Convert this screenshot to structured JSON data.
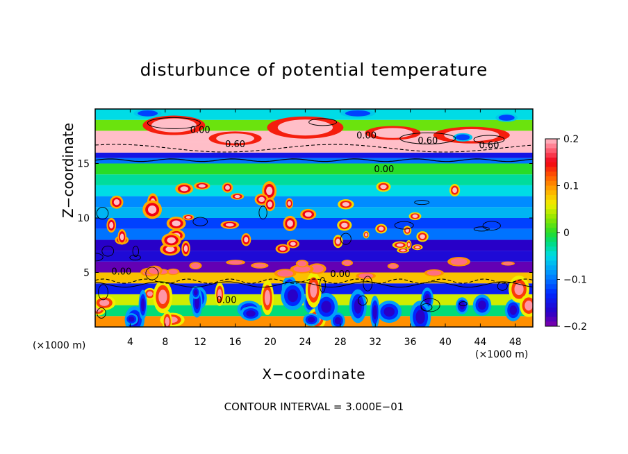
{
  "chart_data": {
    "type": "heatmap",
    "title": "disturbunce of potential temperature",
    "xlabel": "X−coordinate",
    "ylabel": "Z−coordinate",
    "x_unit_left": "(×1000 m)",
    "x_unit_right": "(×1000 m)",
    "footer": "CONTOUR INTERVAL = 3.000E−01",
    "xlim": [
      0,
      50
    ],
    "ylim": [
      0,
      20
    ],
    "x_ticks": [
      "4",
      "8",
      "12",
      "16",
      "20",
      "24",
      "28",
      "32",
      "36",
      "40",
      "44",
      "48"
    ],
    "x_tick_values": [
      4,
      8,
      12,
      16,
      20,
      24,
      28,
      32,
      36,
      40,
      44,
      48
    ],
    "y_ticks": [
      "5",
      "10",
      "15"
    ],
    "y_tick_values": [
      5,
      10,
      15
    ],
    "colorbar": {
      "min": -0.2,
      "max": 0.2,
      "labels": [
        "0.2",
        "0.1",
        "0",
        "−0.1",
        "−0.2"
      ],
      "label_values": [
        0.2,
        0.1,
        0,
        -0.1,
        -0.2
      ]
    },
    "contour_labels": [
      "0.00",
      "0.60",
      "0.00",
      "0.60",
      "0.60",
      "0.00",
      "0.00",
      "0.00",
      "0.00"
    ],
    "contour_interval": 0.3,
    "bands": [
      {
        "z": [
          0,
          1
        ],
        "value": 0.1
      },
      {
        "z": [
          1,
          2
        ],
        "value": -0.02
      },
      {
        "z": [
          2,
          3
        ],
        "value": 0.05
      },
      {
        "z": [
          3,
          4
        ],
        "value": -0.14
      },
      {
        "z": [
          4,
          5
        ],
        "value": 0.08
      },
      {
        "z": [
          5,
          6
        ],
        "value": -0.19
      },
      {
        "z": [
          6,
          7
        ],
        "value": -0.16
      },
      {
        "z": [
          7,
          8
        ],
        "value": -0.17
      },
      {
        "z": [
          8,
          9
        ],
        "value": -0.1
      },
      {
        "z": [
          9,
          10
        ],
        "value": -0.12
      },
      {
        "z": [
          10,
          11
        ],
        "value": -0.07
      },
      {
        "z": [
          11,
          12
        ],
        "value": -0.09
      },
      {
        "z": [
          12,
          13
        ],
        "value": -0.05
      },
      {
        "z": [
          13,
          14
        ],
        "value": -0.03
      },
      {
        "z": [
          14,
          15
        ],
        "value": 0.0
      },
      {
        "z": [
          15,
          15.5
        ],
        "value": -0.1
      },
      {
        "z": [
          15.5,
          16
        ],
        "value": -0.15
      },
      {
        "z": [
          16,
          17
        ],
        "value": 0.2
      },
      {
        "z": [
          17,
          18
        ],
        "value": 0.2
      },
      {
        "z": [
          18,
          19
        ],
        "value": 0.02
      },
      {
        "z": [
          19,
          20
        ],
        "value": -0.05
      }
    ]
  }
}
